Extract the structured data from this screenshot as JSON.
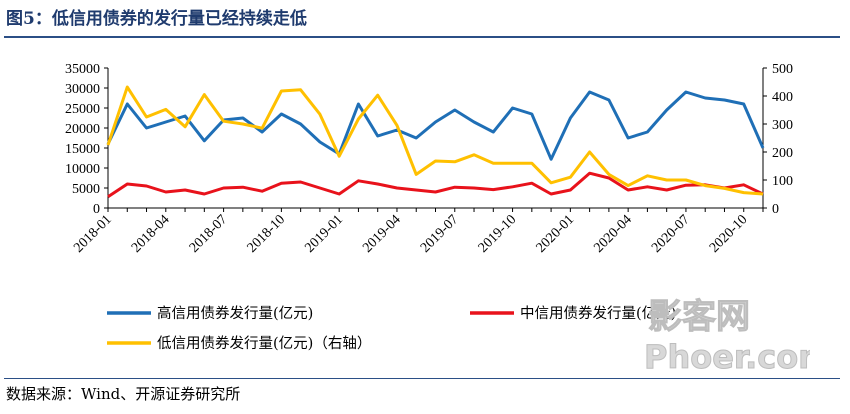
{
  "figure": {
    "title": "图5：低信用债券的发行量已经持续走低",
    "source": "数据来源：Wind、开源证券研究所"
  },
  "watermark": {
    "top": "影客网",
    "bottom": "Phoer.com"
  },
  "chart_data": {
    "type": "line",
    "x": [
      "2018-01",
      "2018-02",
      "2018-03",
      "2018-04",
      "2018-05",
      "2018-06",
      "2018-07",
      "2018-08",
      "2018-09",
      "2018-10",
      "2018-11",
      "2018-12",
      "2019-01",
      "2019-02",
      "2019-03",
      "2019-04",
      "2019-05",
      "2019-06",
      "2019-07",
      "2019-08",
      "2019-09",
      "2019-10",
      "2019-11",
      "2019-12",
      "2020-01",
      "2020-02",
      "2020-03",
      "2020-04",
      "2020-05",
      "2020-06",
      "2020-07",
      "2020-08",
      "2020-09",
      "2020-10",
      "2020-11"
    ],
    "x_tick_labels": [
      "2018-01",
      "2018-04",
      "2018-07",
      "2018-10",
      "2019-01",
      "2019-04",
      "2019-07",
      "2019-10",
      "2020-01",
      "2020-04",
      "2020-07",
      "2020-10"
    ],
    "y_left": {
      "ticks": [
        0,
        5000,
        10000,
        15000,
        20000,
        25000,
        30000,
        35000
      ],
      "range": [
        0,
        35000
      ]
    },
    "y_right": {
      "ticks": [
        0,
        100,
        200,
        300,
        400,
        500
      ],
      "range": [
        0,
        500
      ]
    },
    "series": [
      {
        "name": "高信用债券发行量(亿元)",
        "color": "#1f6fb6",
        "axis": "left",
        "values": [
          16000,
          26000,
          20000,
          21500,
          23000,
          16800,
          22000,
          22500,
          19000,
          23500,
          21000,
          16500,
          13500,
          26000,
          18000,
          19500,
          17500,
          21500,
          24500,
          21500,
          19000,
          25000,
          23500,
          12200,
          22500,
          29000,
          27000,
          17500,
          19000,
          24500,
          29000,
          27500,
          27000,
          26000,
          15000
        ]
      },
      {
        "name": "中信用债券发行量(亿元)",
        "color": "#e8121b",
        "axis": "left",
        "values": [
          2800,
          6000,
          5500,
          4000,
          4500,
          3500,
          5000,
          5200,
          4200,
          6200,
          6500,
          5000,
          3500,
          6800,
          6000,
          5000,
          4500,
          4000,
          5200,
          5000,
          4600,
          5300,
          6200,
          3500,
          4500,
          8700,
          7500,
          4500,
          5300,
          4500,
          5700,
          5800,
          5000,
          5800,
          3500
        ]
      },
      {
        "name": "低信用债券发行量(亿元)（右轴）",
        "color": "#ffc000",
        "axis": "right",
        "values": [
          225,
          432,
          325,
          352,
          290,
          405,
          310,
          300,
          285,
          418,
          422,
          335,
          185,
          318,
          403,
          295,
          120,
          168,
          165,
          190,
          160,
          160,
          160,
          90,
          110,
          200,
          120,
          80,
          115,
          100,
          100,
          80,
          70,
          55,
          50
        ]
      }
    ]
  }
}
